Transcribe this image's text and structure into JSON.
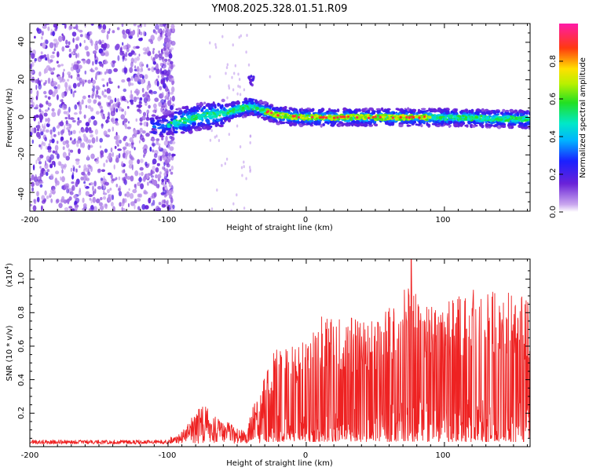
{
  "title": "YM08.2025.328.01.51.R09",
  "chart_data": [
    {
      "type": "heatmap",
      "title": "YM08.2025.328.01.51.R09",
      "xlabel": "Height of straight line (km)",
      "ylabel": "Frequency (Hz)",
      "xlim": [
        -200,
        162
      ],
      "ylim": [
        -50,
        50
      ],
      "xticks": [
        "-200",
        "-100",
        "0",
        "100"
      ],
      "yticks": [
        "-40",
        "-20",
        "0",
        "20",
        "40"
      ],
      "colorbar": {
        "label": "Normalized spectral amplitude",
        "range": [
          0,
          1
        ],
        "ticks": [
          "0.0",
          "0.2",
          "0.4",
          "0.6",
          "0.8"
        ]
      },
      "ridge": [
        {
          "x": -105,
          "y": -5
        },
        {
          "x": -80,
          "y": 0
        },
        {
          "x": -60,
          "y": 2
        },
        {
          "x": -40,
          "y": 6
        },
        {
          "x": -20,
          "y": 1
        },
        {
          "x": 0,
          "y": 0
        },
        {
          "x": 50,
          "y": 0
        },
        {
          "x": 100,
          "y": 0
        },
        {
          "x": 160,
          "y": -1
        }
      ],
      "ridge_peak_range": [
        -30,
        90
      ]
    },
    {
      "type": "line",
      "xlabel": "Height of straight line (km)",
      "ylabel": "SNR (10 * v/v)",
      "scale_label": "(x10",
      "scale_exp": "4",
      "xlim": [
        -200,
        162
      ],
      "ylim": [
        0,
        1.12
      ],
      "xticks": [
        "-200",
        "-100",
        "0",
        "100"
      ],
      "yticks": [
        "0.2",
        "0.4",
        "0.6",
        "0.8",
        "1.0"
      ],
      "color": "#ee2222",
      "envelope": [
        {
          "x": -200,
          "y": 0.03
        },
        {
          "x": -100,
          "y": 0.03
        },
        {
          "x": -90,
          "y": 0.07
        },
        {
          "x": -75,
          "y": 0.25
        },
        {
          "x": -65,
          "y": 0.16
        },
        {
          "x": -45,
          "y": 0.08
        },
        {
          "x": -35,
          "y": 0.3
        },
        {
          "x": -20,
          "y": 0.6
        },
        {
          "x": 0,
          "y": 0.6
        },
        {
          "x": 10,
          "y": 0.75
        },
        {
          "x": 40,
          "y": 0.75
        },
        {
          "x": 60,
          "y": 0.8
        },
        {
          "x": 76,
          "y": 1.12
        },
        {
          "x": 90,
          "y": 0.8
        },
        {
          "x": 125,
          "y": 0.95
        },
        {
          "x": 162,
          "y": 0.85
        }
      ]
    }
  ]
}
